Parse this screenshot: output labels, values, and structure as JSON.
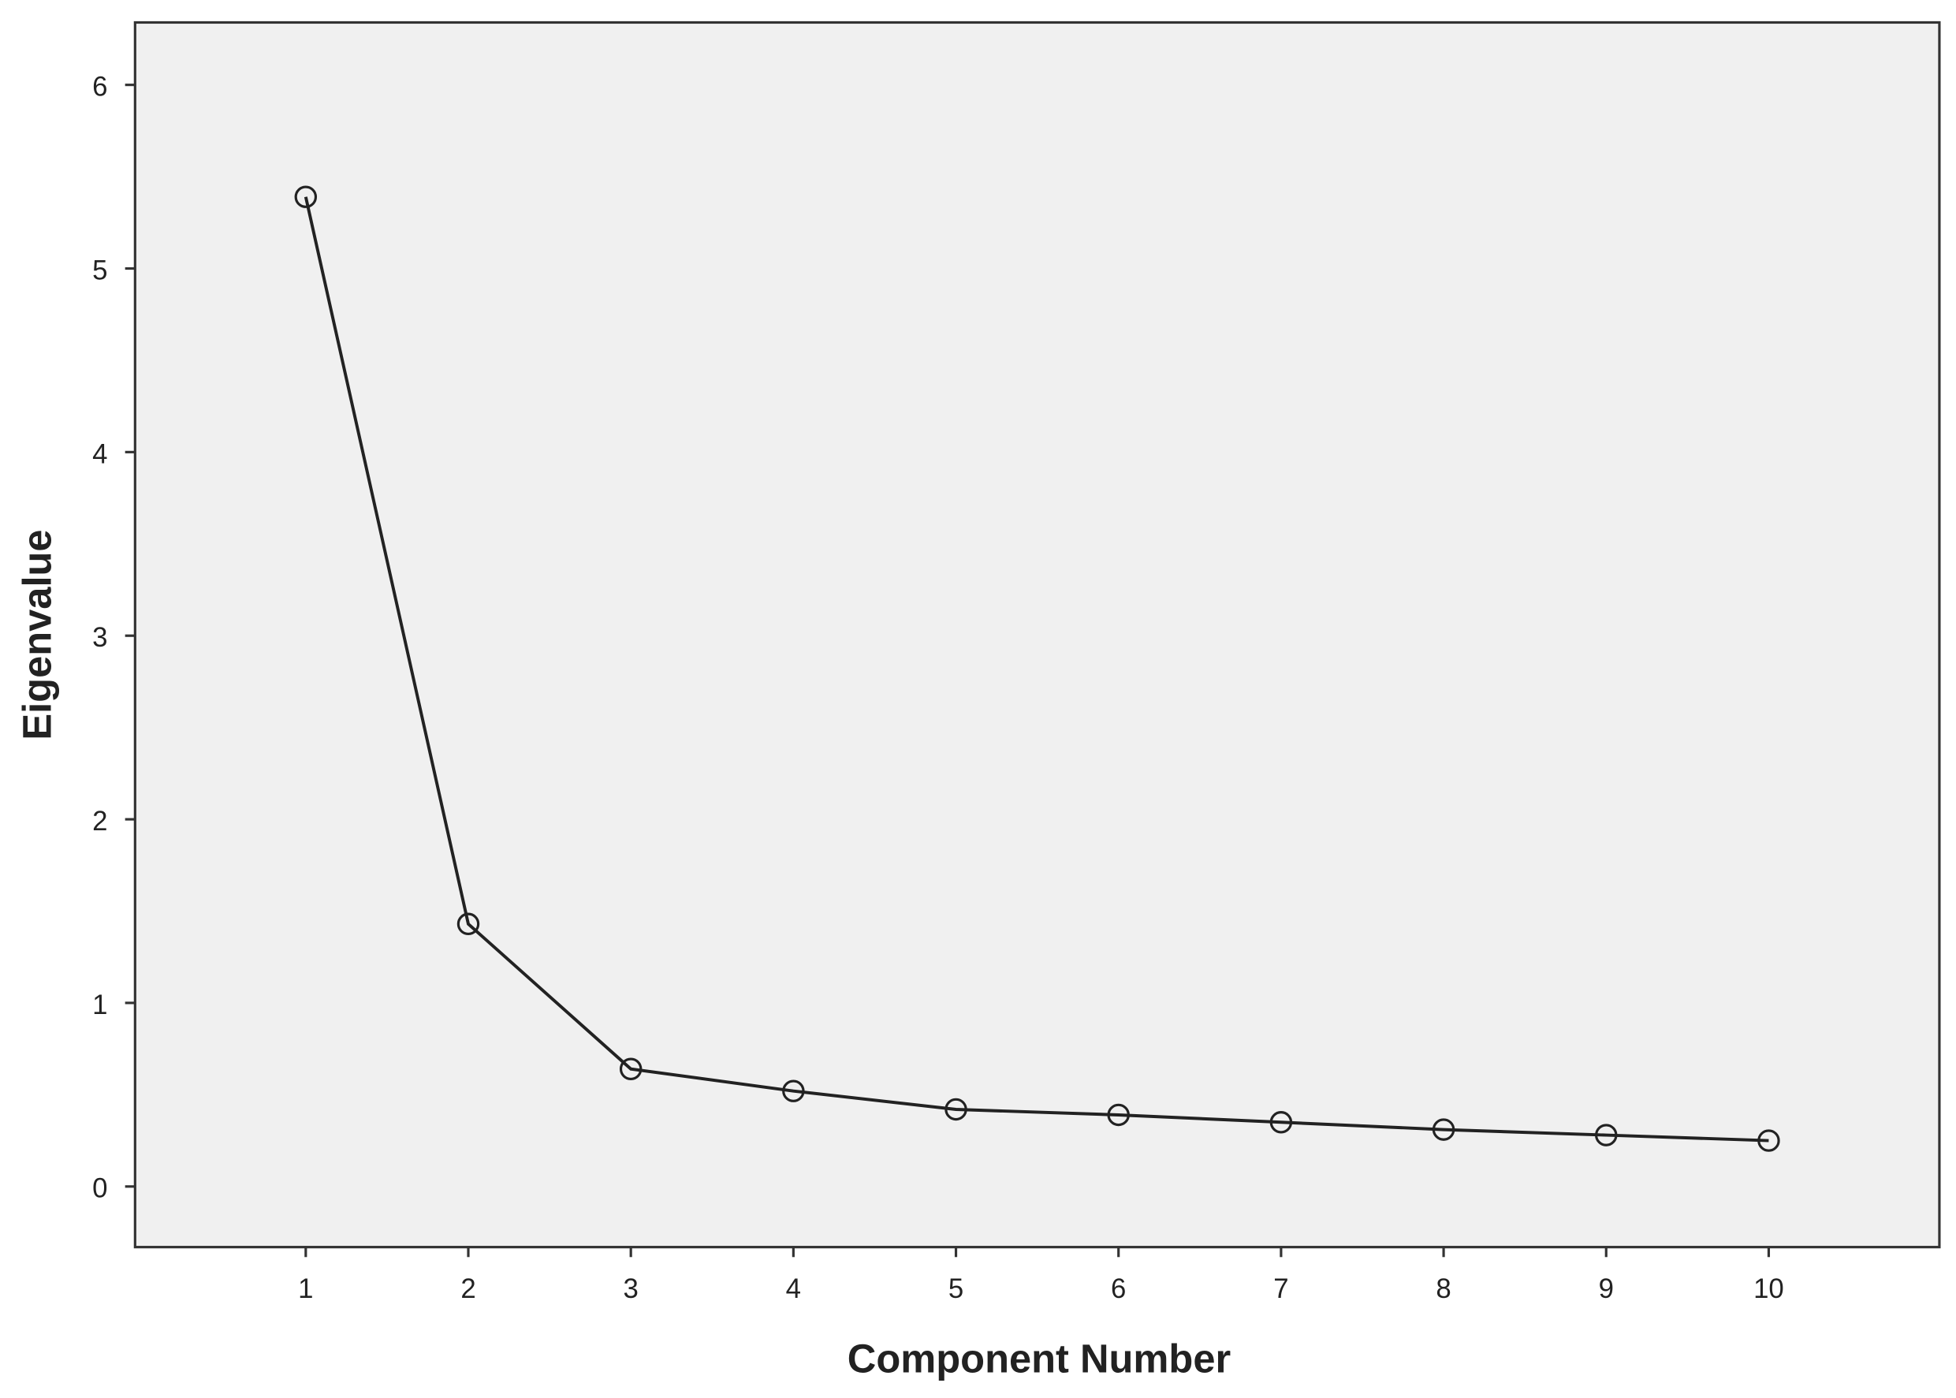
{
  "chart_data": {
    "type": "line",
    "x_label": "Component Number",
    "y_label": "Eigenvalue",
    "x": [
      1,
      2,
      3,
      4,
      5,
      6,
      7,
      8,
      9,
      10
    ],
    "series": [
      {
        "name": "Eigenvalue",
        "color": "#222222",
        "values": [
          5.39,
          1.43,
          0.64,
          0.52,
          0.42,
          0.39,
          0.35,
          0.31,
          0.28,
          0.25
        ]
      }
    ],
    "xlim": [
      -0.05,
      11.05
    ],
    "xticks": [
      1,
      2,
      3,
      4,
      5,
      6,
      7,
      8,
      9,
      10
    ],
    "ylim": [
      -0.33,
      6.34
    ],
    "yticks": [
      0,
      1,
      2,
      3,
      4,
      5,
      6
    ],
    "grid": false,
    "background": "#f0f0f0"
  }
}
